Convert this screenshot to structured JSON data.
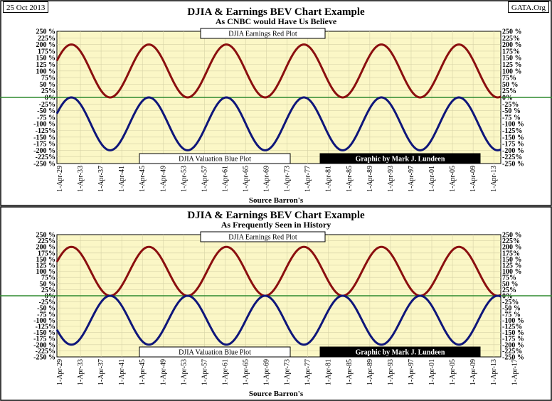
{
  "header": {
    "date": "25 Oct 2013",
    "site": "GATA.Org"
  },
  "colors": {
    "background": "#fbf7c6",
    "grid": "#d6d2a6",
    "earnings": "#8b0f0f",
    "valuation": "#0f167a",
    "zero_line": "#2e8a2e"
  },
  "chart_data": [
    {
      "type": "line",
      "title": "DJIA & Earnings BEV Chart Example",
      "subtitle": "As CNBC would Have Us Believe",
      "xlabel": "Source Barron's",
      "ylabel": "",
      "x_ticks": [
        "1-Apr-29",
        "1-Apr-33",
        "1-Apr-37",
        "1-Apr-41",
        "1-Apr-45",
        "1-Apr-49",
        "1-Apr-53",
        "1-Apr-57",
        "1-Apr-61",
        "1-Apr-65",
        "1-Apr-69",
        "1-Apr-73",
        "1-Apr-77",
        "1-Apr-81",
        "1-Apr-85",
        "1-Apr-89",
        "1-Apr-93",
        "1-Apr-97",
        "1-Apr-01",
        "1-Apr-05",
        "1-Apr-09",
        "1-Apr-13"
      ],
      "xlim": [
        1928.7,
        2014.6
      ],
      "y_ticks": [
        "250 %",
        "225%",
        "200 %",
        "175%",
        "150 %",
        "125 %",
        "100 %",
        "75%",
        "50 %",
        "25%",
        "0%",
        "-25%",
        "-50 %",
        "-75 %",
        "-100 %",
        "-125%",
        "-150 %",
        "-175 %",
        "-200 %",
        "-225%",
        "-250 %"
      ],
      "ylim": [
        -250,
        250
      ],
      "grid": true,
      "labels": {
        "red": "DJIA Earnings Red Plot",
        "blue": "DJIA Valuation Blue Plot",
        "credit": "Graphic by Mark J. Lundeen"
      },
      "series": [
        {
          "name": "DJIA Earnings Red Plot",
          "color": "#8b0f0f",
          "offset": 100,
          "amplitude": 100,
          "period": 15,
          "peak_x": 1946.5,
          "x_start": 1928.7,
          "x_end": 2014.6
        },
        {
          "name": "DJIA Valuation Blue Plot",
          "color": "#0f167a",
          "offset": -100,
          "amplitude": 100,
          "period": 15,
          "peak_x": 1946.5,
          "x_start": 1928.7,
          "x_end": 2014.6
        }
      ]
    },
    {
      "type": "line",
      "title": "DJIA & Earnings BEV Chart Example",
      "subtitle": "As Frequently Seen in History",
      "xlabel": "Source Barron's",
      "ylabel": "",
      "x_ticks": [
        "1-Apr-29",
        "1-Apr-33",
        "1-Apr-37",
        "1-Apr-41",
        "1-Apr-45",
        "1-Apr-49",
        "1-Apr-53",
        "1-Apr-57",
        "1-Apr-61",
        "1-Apr-65",
        "1-Apr-69",
        "1-Apr-73",
        "1-Apr-77",
        "1-Apr-81",
        "1-Apr-85",
        "1-Apr-89",
        "1-Apr-93",
        "1-Apr-97",
        "1-Apr-01",
        "1-Apr-05",
        "1-Apr-09",
        "1-Apr-13",
        "1-Apr-17"
      ],
      "xlim": [
        1928.7,
        2014.6
      ],
      "y_ticks": [
        "250 %",
        "225%",
        "200 %",
        "175%",
        "150 %",
        "125 %",
        "100 %",
        "75%",
        "50 %",
        "25%",
        "0%",
        "-25%",
        "-50 %",
        "-75 %",
        "-100 %",
        "-125%",
        "-150 %",
        "-175 %",
        "-200 %",
        "-225%",
        "-250 %"
      ],
      "ylim": [
        -250,
        250
      ],
      "grid": true,
      "labels": {
        "red": "DJIA Earnings Red Plot",
        "blue": "DJIA Valuation Blue Plot",
        "credit": "Graphic by Mark J. Lundeen"
      },
      "series": [
        {
          "name": "DJIA Earnings Red Plot",
          "color": "#8b0f0f",
          "offset": 100,
          "amplitude": 100,
          "period": 15,
          "peak_x": 1946.5,
          "x_start": 1928.7,
          "x_end": 2014.6
        },
        {
          "name": "DJIA Valuation Blue Plot",
          "color": "#0f167a",
          "offset": -100,
          "amplitude": 100,
          "period": 15,
          "peak_x": 1939,
          "x_start": 1928.7,
          "x_end": 2014.6
        }
      ]
    }
  ]
}
